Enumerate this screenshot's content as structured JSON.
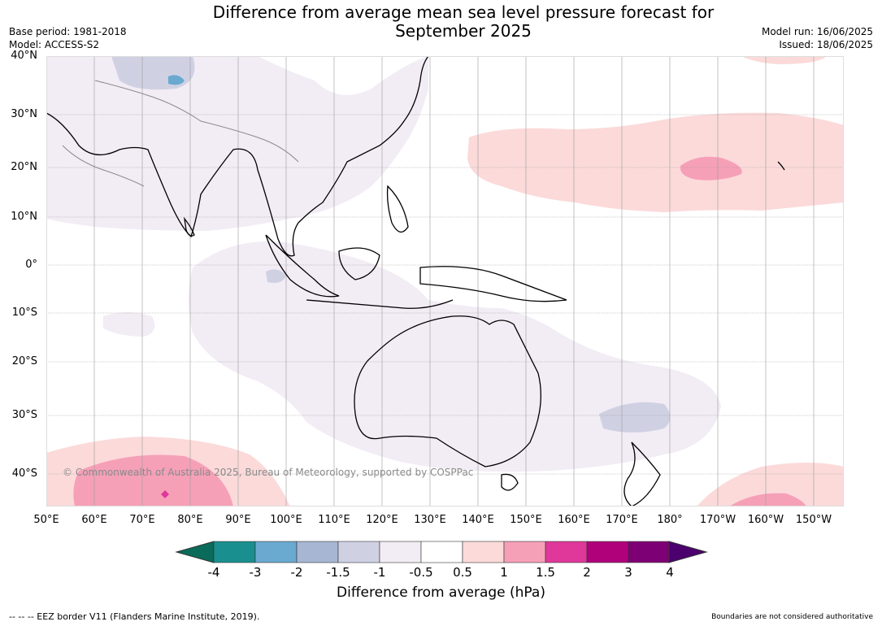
{
  "title": "Difference from average mean sea level pressure forecast for\nSeptember 2025",
  "meta_left": {
    "base_period": "Base period: 1981-2018",
    "model": "Model: ACCESS-S2"
  },
  "meta_right": {
    "model_run": "Model run: 16/06/2025",
    "issued": "Issued: 18/06/2025"
  },
  "map": {
    "lat_labels": [
      "40°N",
      "30°N",
      "20°N",
      "10°N",
      "0°",
      "10°S",
      "20°S",
      "30°S",
      "40°S"
    ],
    "lon_labels": [
      "50°E",
      "60°E",
      "70°E",
      "80°E",
      "90°E",
      "100°E",
      "110°E",
      "120°E",
      "130°E",
      "140°E",
      "150°E",
      "160°E",
      "170°E",
      "180°",
      "170°W",
      "160°W",
      "150°W"
    ],
    "copyright": "© Commonwealth of Australia 2025, Bureau of Meteorology, supported by COSPPac",
    "colors": {
      "land_outline": "#000000",
      "border": "#888888",
      "grid": "#9a9a9a"
    }
  },
  "colorbar": {
    "tick_labels": [
      "-4",
      "-3",
      "-2",
      "-1.5",
      "-1",
      "-0.5",
      "0.5",
      "1",
      "1.5",
      "2",
      "3",
      "4"
    ],
    "bin_colors": [
      "#1a8f8f",
      "#6aa9d0",
      "#a7b6d3",
      "#cfd1e3",
      "#f2ecf5",
      "#ffffff",
      "#fcdada",
      "#f6a0b8",
      "#e0389a",
      "#b0007a",
      "#7e0075"
    ],
    "extend_low_color": "#0a6b5a",
    "extend_high_color": "#4b006e",
    "label": "Difference from average (hPa)"
  },
  "footer": {
    "eez_legend": "--  --  -- EEZ border V11 (Flanders Marine Institute, 2019).",
    "disclaimer": "Boundaries are not considered authoritative"
  }
}
